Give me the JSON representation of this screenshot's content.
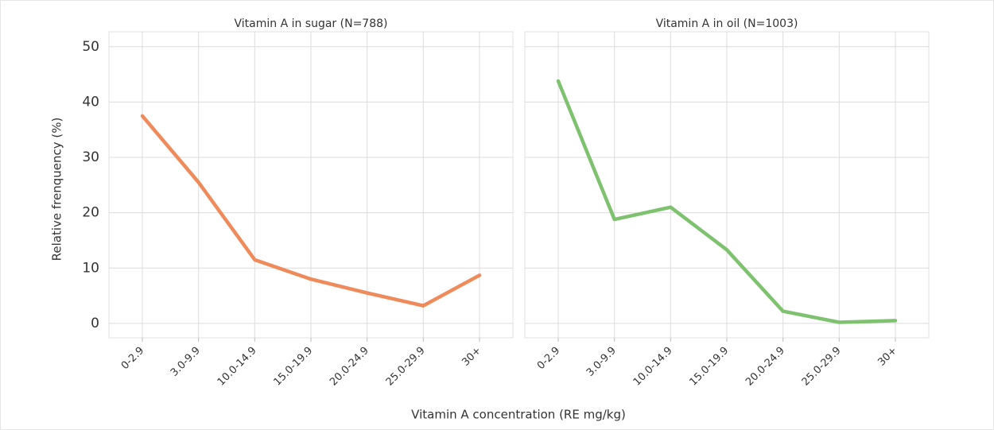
{
  "xlabel": "Vitamin A concentration (RE mg/kg)",
  "ylabel": "Relative frenquency (%)",
  "chart_data": [
    {
      "type": "line",
      "title": "Vitamin A in sugar (N=788)",
      "categories": [
        "0-2.9",
        "3.0-9.9",
        "10.0-14.9",
        "15.0-19.9",
        "20.0-24.9",
        "25.0-29.9",
        "30+"
      ],
      "series": [
        {
          "name": "Vitamin A in sugar",
          "color": "#ef8a5b",
          "values": [
            37.5,
            25.5,
            11.5,
            8,
            5.5,
            3.2,
            8.7
          ]
        }
      ],
      "ylim": [
        -2.6,
        52.7
      ],
      "yticks": [
        0,
        10,
        20,
        30,
        40,
        50
      ],
      "grid": true
    },
    {
      "type": "line",
      "title": "Vitamin A in oil (N=1003)",
      "categories": [
        "0-2.9",
        "3.0-9.9",
        "10.0-14.9",
        "15.0-19.9",
        "20.0-24.9",
        "25.0-29.9",
        "30+"
      ],
      "series": [
        {
          "name": "Vitamin A in oil",
          "color": "#7ec26f",
          "values": [
            43.8,
            18.8,
            21,
            13.3,
            2.2,
            0.2,
            0.5
          ]
        }
      ],
      "ylim": [
        -2.6,
        52.7
      ],
      "yticks": [
        0,
        10,
        20,
        30,
        40,
        50
      ],
      "grid": true
    }
  ]
}
